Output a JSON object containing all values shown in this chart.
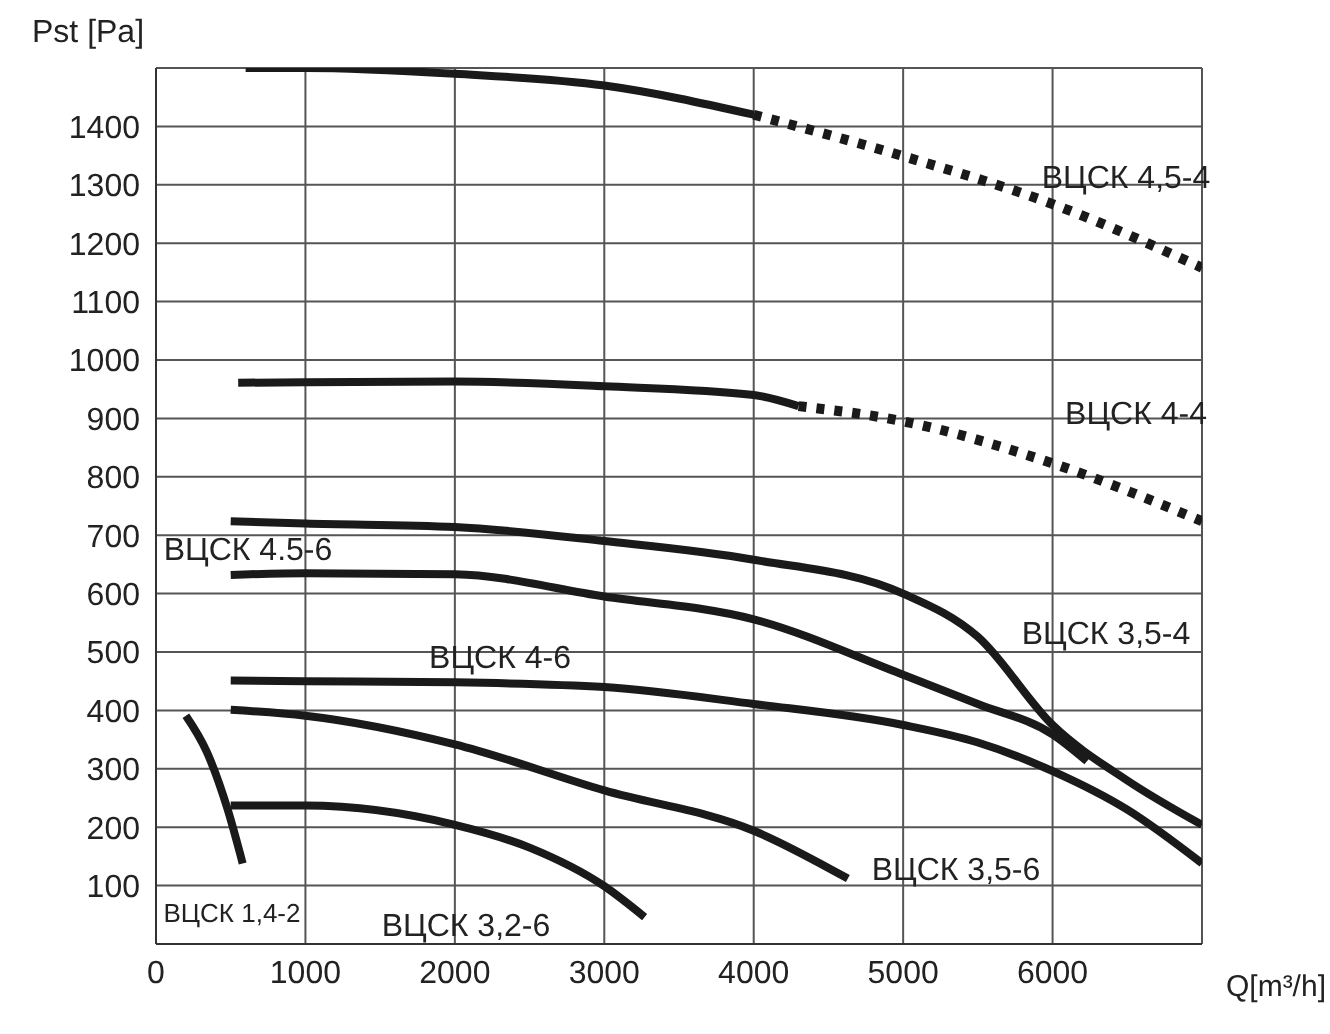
{
  "chart_data": {
    "type": "line",
    "xlabel": "Q[m³/h]",
    "ylabel": "Pst [Pa]",
    "xlim": [
      0,
      7000
    ],
    "xticks": [
      0,
      1000,
      2000,
      3000,
      4000,
      5000,
      6000,
      {
        "value": 7000,
        "label": null
      }
    ],
    "ylim": [
      0,
      1500
    ],
    "yticks": [
      100,
      200,
      300,
      400,
      500,
      600,
      700,
      800,
      900,
      1000,
      1100,
      1200,
      1300,
      1400,
      {
        "value": 1500,
        "label": null
      }
    ],
    "grid": true,
    "legend": false,
    "marker": "none",
    "series": [
      {
        "color": "#1a1a1a",
        "line_style": "solid",
        "x": [
          600,
          1000,
          2000,
          3000,
          4000
        ],
        "values": [
          1500,
          1500,
          1490,
          1470,
          1420
        ]
      },
      {
        "color": "#1a1a1a",
        "line_style": "dotted",
        "x": [
          4000,
          5000,
          6000,
          7000
        ],
        "values": [
          1420,
          1349,
          1267,
          1158
        ]
      },
      {
        "color": "#1a1a1a",
        "line_style": "solid",
        "x": [
          550,
          1000,
          2000,
          3000,
          4000,
          4300
        ],
        "values": [
          961,
          962,
          963,
          955,
          940,
          921
        ]
      },
      {
        "color": "#1a1a1a",
        "line_style": "dotted",
        "x": [
          4300,
          5000,
          6000,
          7000
        ],
        "values": [
          921,
          895,
          823,
          724
        ]
      },
      {
        "color": "#1a1a1a",
        "line_style": "solid",
        "x": [
          500,
          1000,
          2000,
          3000,
          4000,
          5000,
          5500,
          6000,
          6500,
          7000
        ],
        "values": [
          724,
          720,
          714,
          690,
          658,
          600,
          526,
          375,
          280,
          204
        ]
      },
      {
        "color": "#1a1a1a",
        "line_style": "solid",
        "x": [
          500,
          1000,
          2000,
          3000,
          4000,
          5000,
          5500,
          6000,
          6230
        ],
        "values": [
          632,
          635,
          633,
          595,
          556,
          461,
          411,
          359,
          313
        ]
      },
      {
        "color": "#1a1a1a",
        "line_style": "solid",
        "x": [
          500,
          1000,
          2000,
          3000,
          4000,
          5000,
          5500,
          6000,
          6500,
          7000
        ],
        "values": [
          451,
          450,
          448,
          440,
          411,
          375,
          345,
          296,
          230,
          138
        ]
      },
      {
        "color": "#1a1a1a",
        "line_style": "solid",
        "x": [
          500,
          1000,
          2000,
          3000,
          4000,
          4630
        ],
        "values": [
          401,
          391,
          342,
          263,
          194,
          112
        ]
      },
      {
        "color": "#1a1a1a",
        "line_style": "solid",
        "x": [
          500,
          1000,
          2000,
          2500,
          3000,
          3270
        ],
        "values": [
          237,
          237,
          204,
          165,
          99,
          46
        ]
      },
      {
        "color": "#1a1a1a",
        "line_style": "solid",
        "x": [
          200,
          340,
          480,
          580
        ],
        "values": [
          391,
          329,
          230,
          138
        ]
      }
    ],
    "annotations": [
      "ВЦСК 4,5-4",
      "ВЦСК 4-4",
      "ВЦСК 4.5-6",
      "ВЦСК 4-6",
      "ВЦСК 3,5-4",
      "ВЦСК 3,5-6",
      "ВЦСК 3,2-6",
      "ВЦСК 1,4-2"
    ]
  }
}
